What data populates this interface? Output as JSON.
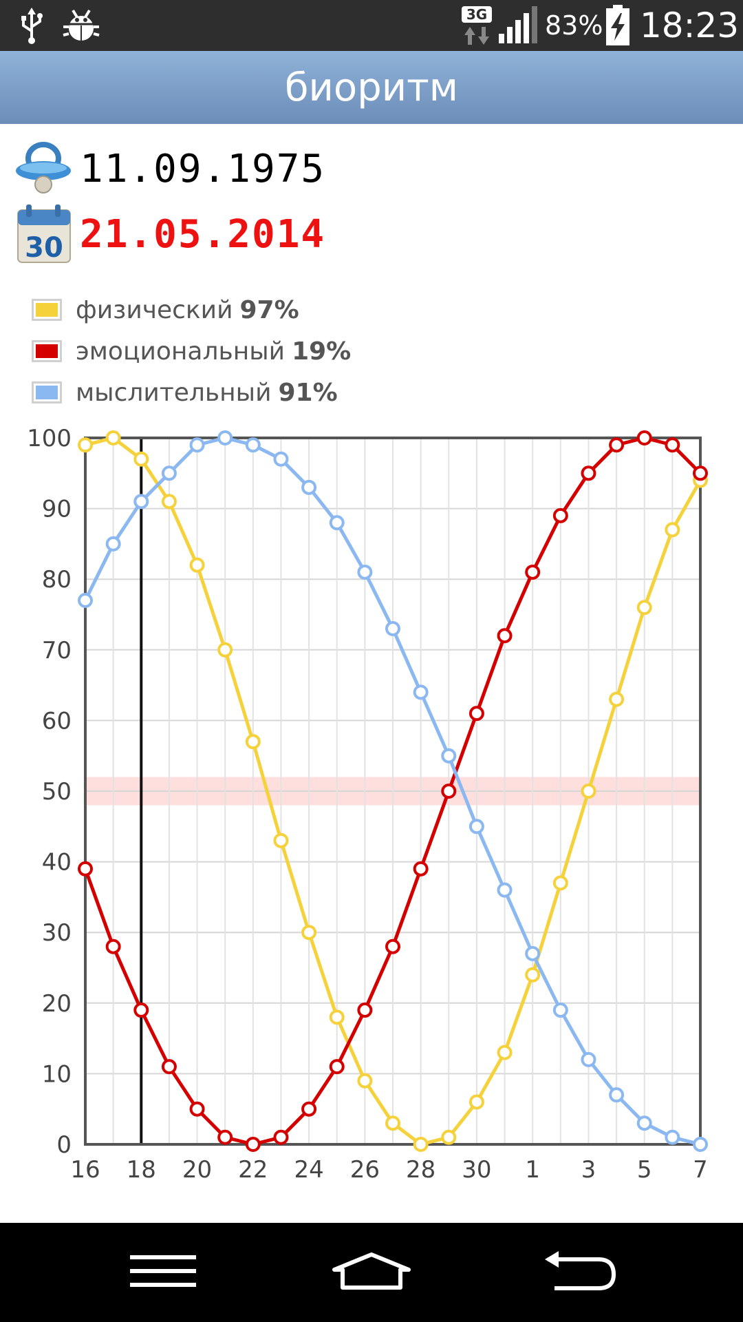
{
  "status_bar": {
    "icons": [
      "usb-icon",
      "debug-icon",
      "network-3g-icon",
      "signal-icon",
      "battery-charging-icon"
    ],
    "network_type": "3G",
    "battery_percent": "83%",
    "time": "18:23"
  },
  "app": {
    "title": "биоритм"
  },
  "dates": {
    "birth_icon": "pacifier-icon",
    "birth_date": "11.09.1975",
    "current_icon": "calendar-icon",
    "calendar_day": "30",
    "current_date": "21.05.2014"
  },
  "legend": [
    {
      "label": "физический",
      "value": "97%",
      "color": "#f5d23c"
    },
    {
      "label": "эмоциональный",
      "value": "19%",
      "color": "#d40000"
    },
    {
      "label": "мыслительный",
      "value": "91%",
      "color": "#8bb8f0"
    }
  ],
  "chart_data": {
    "type": "line",
    "x": [
      "16",
      "17",
      "18",
      "19",
      "20",
      "21",
      "22",
      "23",
      "24",
      "25",
      "26",
      "27",
      "28",
      "29",
      "30",
      "31",
      "1",
      "2",
      "3",
      "4",
      "5",
      "6",
      "7"
    ],
    "xticks": [
      "16",
      "18",
      "20",
      "22",
      "24",
      "26",
      "28",
      "30",
      "1",
      "3",
      "5",
      "7"
    ],
    "yticks": [
      "0",
      "10",
      "20",
      "30",
      "40",
      "50",
      "60",
      "70",
      "80",
      "90",
      "100"
    ],
    "ylim": [
      0,
      100
    ],
    "grid": true,
    "current_day": "18",
    "reference_band": 50,
    "series": [
      {
        "name": "физический",
        "color": "#f5d23c",
        "values": [
          99,
          100,
          97,
          91,
          82,
          70,
          57,
          43,
          30,
          18,
          9,
          3,
          0,
          1,
          6,
          13,
          24,
          37,
          50,
          63,
          76,
          87,
          94
        ]
      },
      {
        "name": "эмоциональный",
        "color": "#d40000",
        "values": [
          39,
          28,
          19,
          11,
          5,
          1,
          0,
          1,
          5,
          11,
          19,
          28,
          39,
          50,
          61,
          72,
          81,
          89,
          95,
          99,
          100,
          99,
          95
        ]
      },
      {
        "name": "мыслительный",
        "color": "#8bb8f0",
        "values": [
          77,
          85,
          91,
          95,
          99,
          100,
          99,
          97,
          93,
          88,
          81,
          73,
          64,
          55,
          45,
          36,
          27,
          19,
          12,
          7,
          3,
          1,
          0
        ]
      }
    ]
  },
  "nav_bar": {
    "menu_icon": "menu-icon",
    "home_icon": "home-icon",
    "back_icon": "back-icon"
  }
}
